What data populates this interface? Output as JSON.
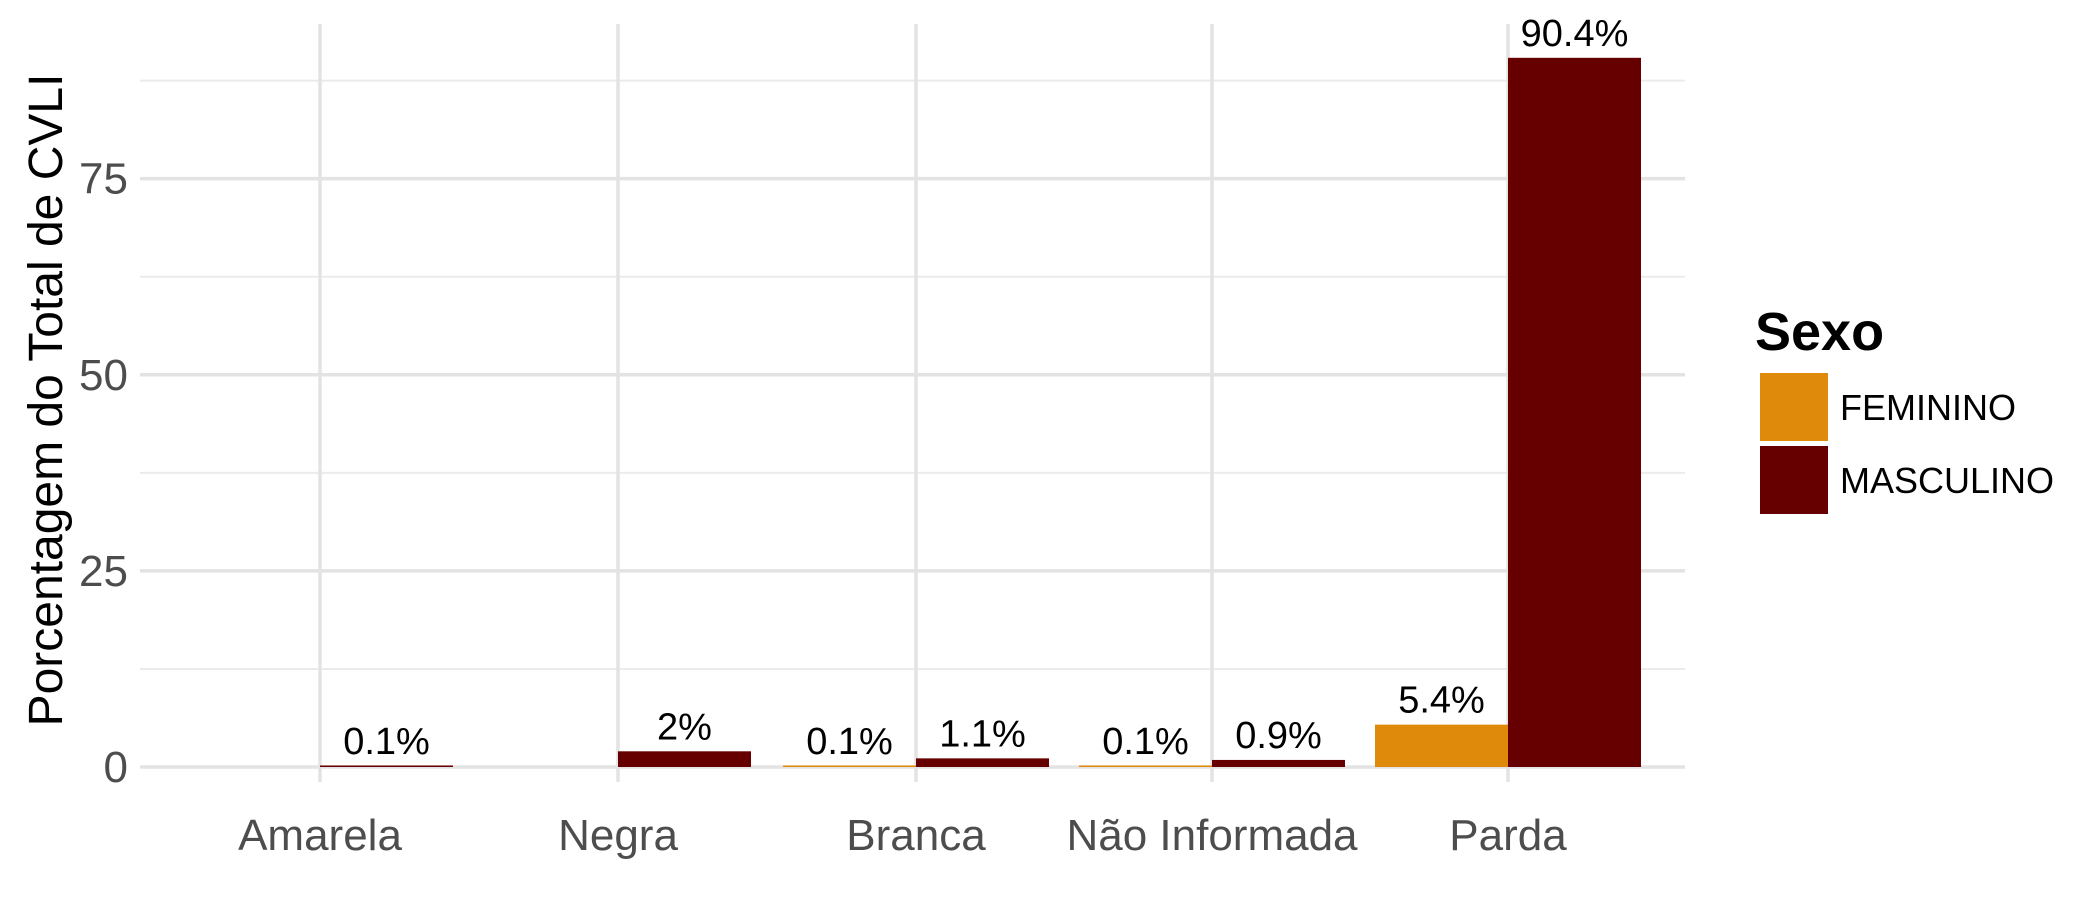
{
  "chart_data": {
    "type": "bar",
    "title": "",
    "xlabel": "",
    "ylabel": "Porcentagem do Total de CVLI",
    "categories": [
      "Amarela",
      "Negra",
      "Branca",
      "Não Informada",
      "Parda"
    ],
    "series": [
      {
        "name": "FEMININO",
        "color": "#E08A0B",
        "values": [
          null,
          null,
          0.1,
          0.1,
          5.4
        ],
        "labels": [
          "",
          "",
          "0.1%",
          "0.1%",
          "5.4%"
        ]
      },
      {
        "name": "MASCULINO",
        "color": "#660000",
        "values": [
          0.1,
          2,
          1.1,
          0.9,
          90.4
        ],
        "labels": [
          "0.1%",
          "2%",
          "1.1%",
          "0.9%",
          "90.4%"
        ]
      }
    ],
    "yticks": [
      0,
      25,
      50,
      75
    ],
    "ylim": [
      0,
      95
    ],
    "grid": true,
    "legend": {
      "title": "Sexo",
      "position": "right"
    }
  }
}
